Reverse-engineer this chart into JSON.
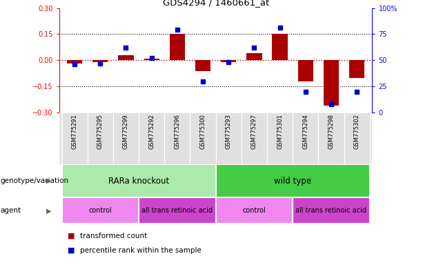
{
  "title": "GDS4294 / 1460661_at",
  "samples": [
    "GSM775291",
    "GSM775295",
    "GSM775299",
    "GSM775292",
    "GSM775296",
    "GSM775300",
    "GSM775293",
    "GSM775297",
    "GSM775301",
    "GSM775294",
    "GSM775298",
    "GSM775302"
  ],
  "bar_values": [
    -0.02,
    -0.01,
    0.03,
    0.01,
    0.15,
    -0.06,
    -0.01,
    0.04,
    0.15,
    -0.12,
    -0.26,
    -0.1
  ],
  "percentile_values": [
    46,
    47,
    62,
    52,
    79,
    30,
    48,
    62,
    81,
    20,
    8,
    20
  ],
  "bar_color": "#aa0000",
  "dot_color": "#0000cc",
  "yticks": [
    -0.3,
    -0.15,
    0.0,
    0.15,
    0.3
  ],
  "y2ticks": [
    0,
    25,
    50,
    75,
    100
  ],
  "y2ticklabels": [
    "0",
    "25",
    "50",
    "75",
    "100%"
  ],
  "genotype_groups": [
    {
      "label": "RARa knockout",
      "start": 0,
      "end": 5,
      "color": "#aaeaaa"
    },
    {
      "label": "wild type",
      "start": 6,
      "end": 11,
      "color": "#44cc44"
    }
  ],
  "agent_groups": [
    {
      "label": "control",
      "start": 0,
      "end": 2,
      "color": "#ee88ee"
    },
    {
      "label": "all trans retinoic acid",
      "start": 3,
      "end": 5,
      "color": "#cc44cc"
    },
    {
      "label": "control",
      "start": 6,
      "end": 8,
      "color": "#ee88ee"
    },
    {
      "label": "all trans retinoic acid",
      "start": 9,
      "end": 11,
      "color": "#cc44cc"
    }
  ],
  "genotype_label": "genotype/variation",
  "agent_label": "agent",
  "legend_items": [
    {
      "label": "transformed count",
      "color": "#aa0000"
    },
    {
      "label": "percentile rank within the sample",
      "color": "#0000cc"
    }
  ]
}
